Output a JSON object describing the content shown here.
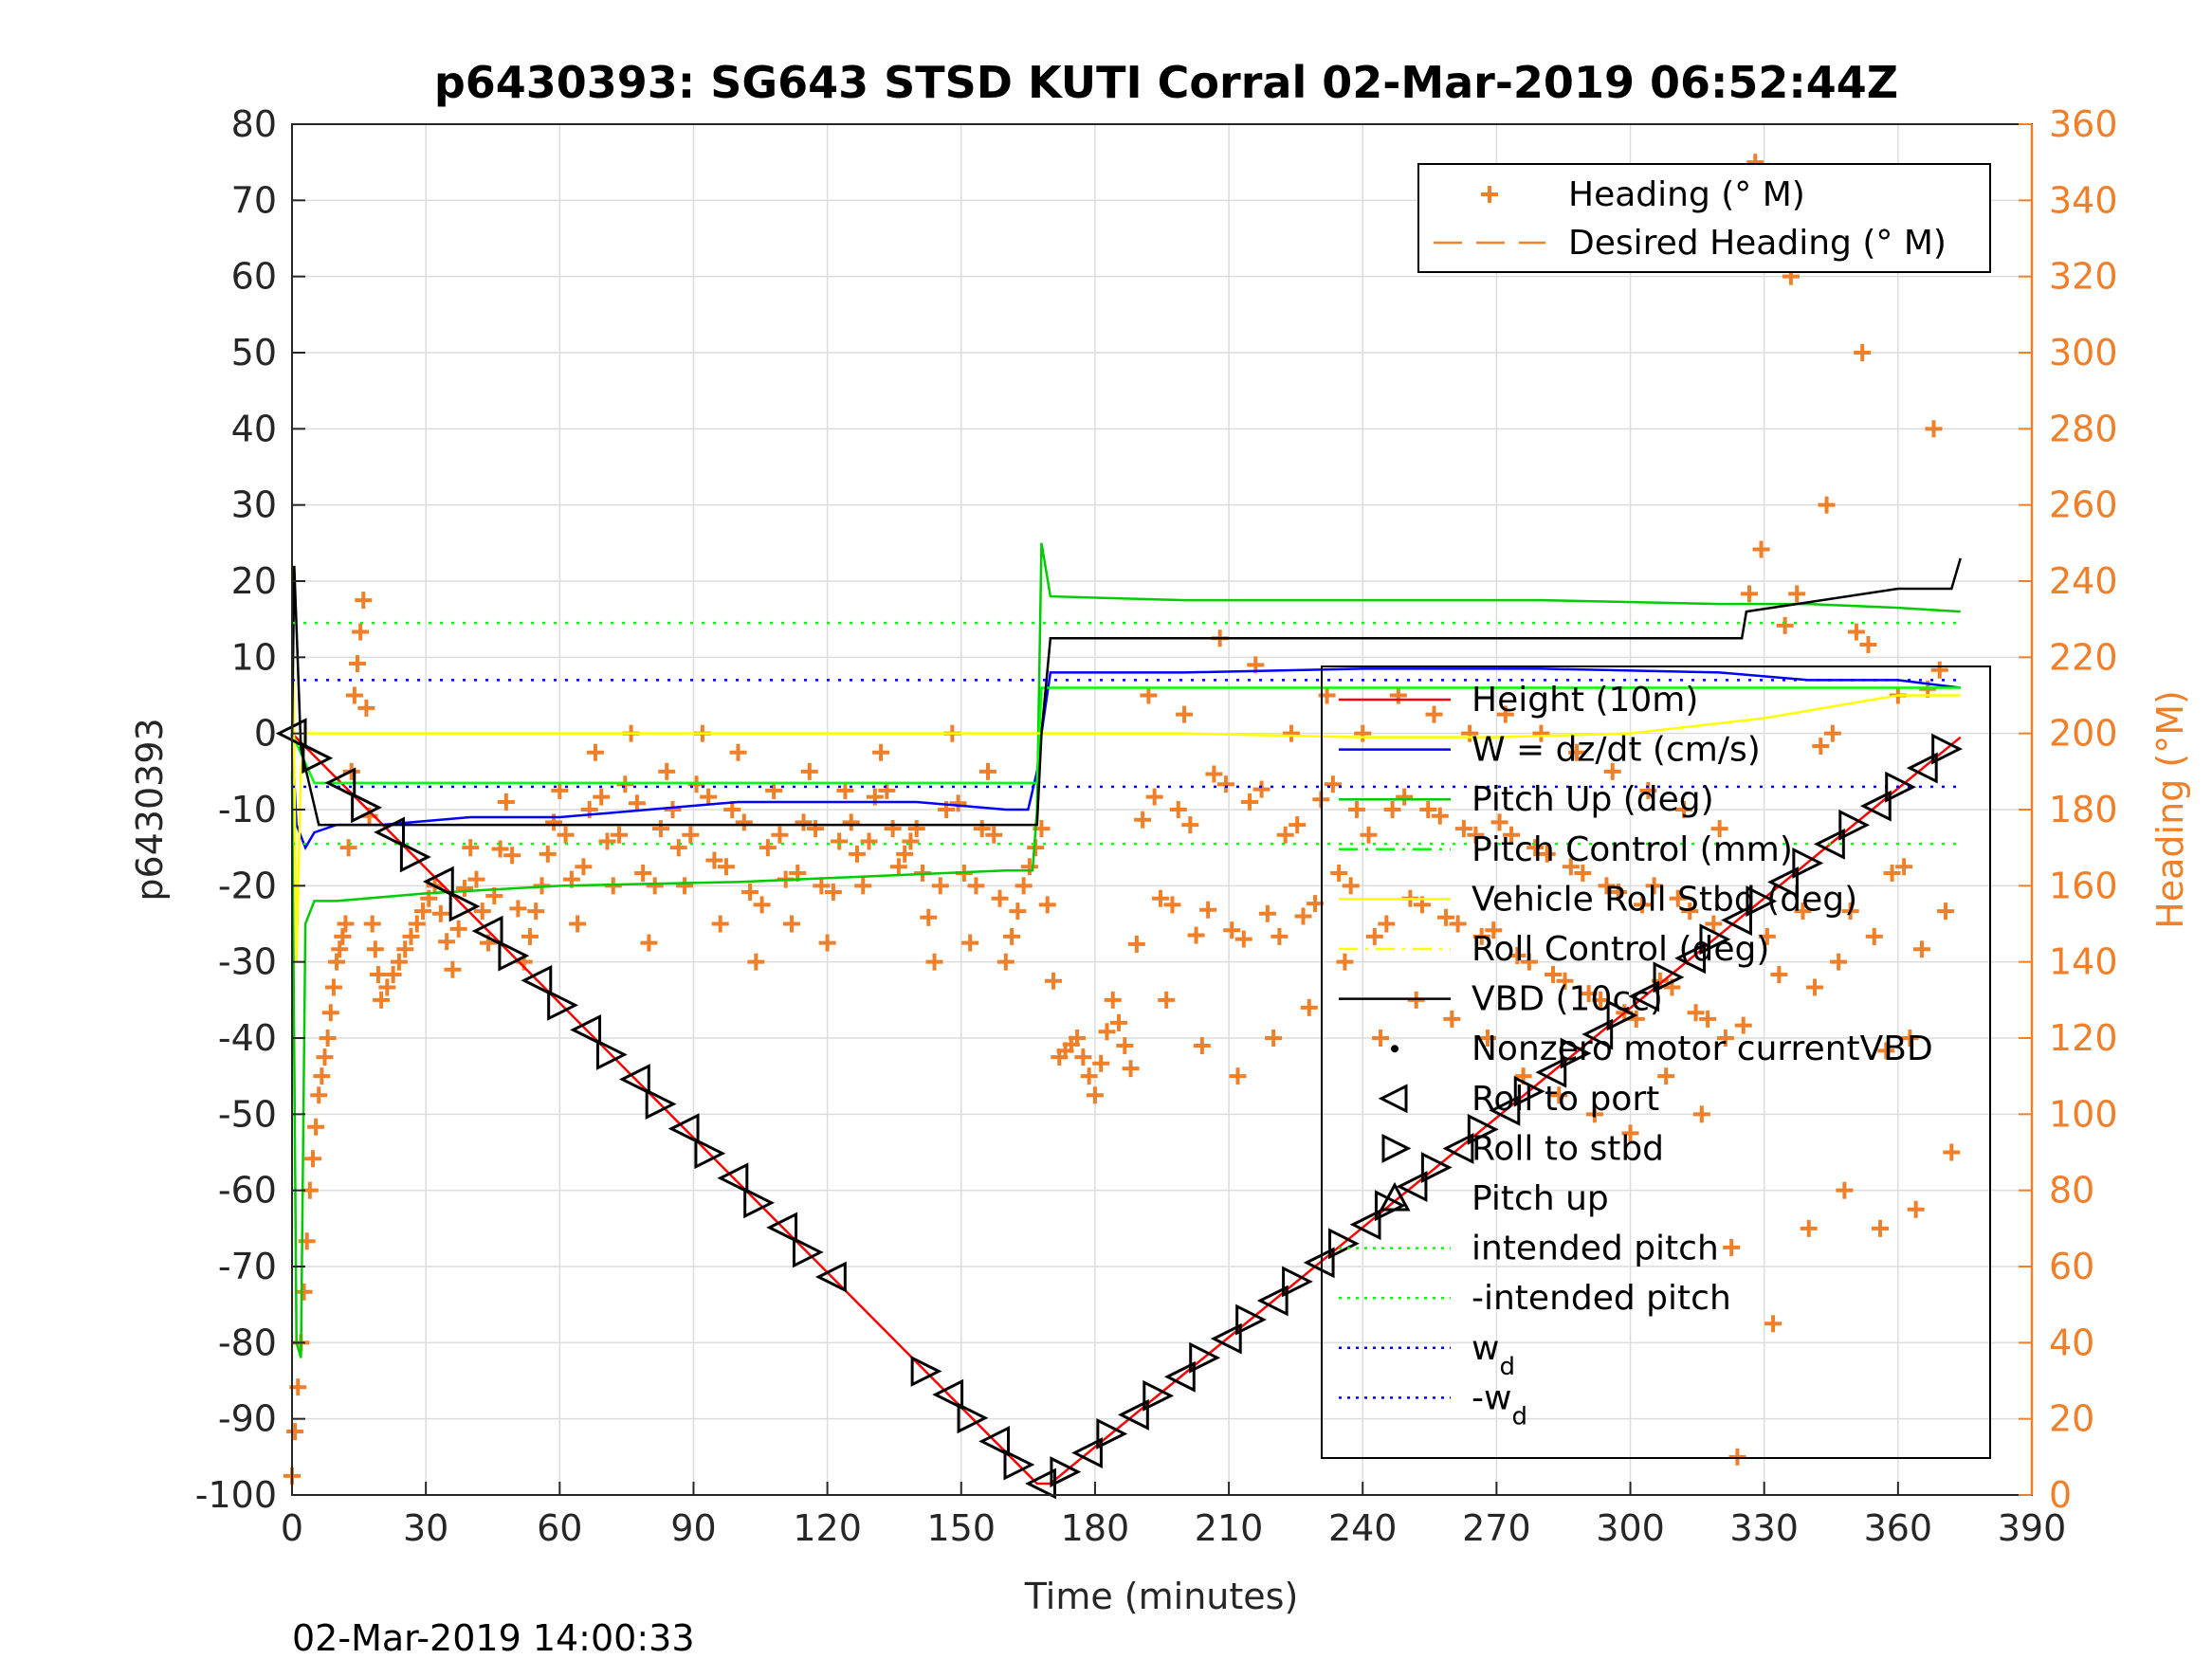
{
  "chart_data": {
    "type": "line",
    "title": "p6430393: SG643 STSD KUTI Corral 02-Mar-2019 06:52:44Z",
    "xlabel": "Time (minutes)",
    "ylabel": "p6430393",
    "ylabel_right": "Heading (°M)",
    "timestamp": "02-Mar-2019 14:00:33",
    "xlim": [
      0,
      390
    ],
    "ylim": [
      -100,
      80
    ],
    "ylim_right": [
      0,
      360
    ],
    "x_ticks": [
      "0",
      "30",
      "60",
      "90",
      "120",
      "150",
      "180",
      "210",
      "240",
      "270",
      "300",
      "330",
      "360",
      "390"
    ],
    "y_ticks": [
      "80",
      "70",
      "60",
      "50",
      "40",
      "30",
      "20",
      "10",
      "0",
      "-10",
      "-20",
      "-30",
      "-40",
      "-50",
      "-60",
      "-70",
      "-80",
      "-90",
      "-100"
    ],
    "y_ticks_right": [
      "360",
      "340",
      "320",
      "300",
      "280",
      "260",
      "240",
      "220",
      "200",
      "180",
      "160",
      "140",
      "120",
      "100",
      "80",
      "60",
      "40",
      "20",
      "0"
    ],
    "grid": true,
    "legends": [
      {
        "placement": "top-right",
        "entries": [
          {
            "label": "Heading (° M)",
            "color": "#f07f2a",
            "style": "plus"
          },
          {
            "label": "Desired Heading (° M)",
            "color": "#f07f2a",
            "style": "dashed"
          }
        ]
      },
      {
        "placement": "center-right",
        "entries": [
          {
            "label": "Height (10m)",
            "color": "#ff0000",
            "style": "line"
          },
          {
            "label": "W = dz/dt (cm/s)",
            "color": "#0000ff",
            "style": "line"
          },
          {
            "label": "Pitch Up (deg)",
            "color": "#00cc00",
            "style": "line"
          },
          {
            "label": "Pitch Control (mm)",
            "color": "#00ff00",
            "style": "dashdot"
          },
          {
            "label": "Vehicle Roll Stbd (deg)",
            "color": "#ffff00",
            "style": "line"
          },
          {
            "label": "Roll Control (deg)",
            "color": "#ffff00",
            "style": "dashdot"
          },
          {
            "label": "VBD (10cc)",
            "color": "#000000",
            "style": "line"
          },
          {
            "label": "Nonzero motor currentVBD",
            "color": "#000000",
            "style": "dot"
          },
          {
            "label": "Roll to port",
            "color": "#000000",
            "style": "triangle-left"
          },
          {
            "label": "Roll to stbd",
            "color": "#000000",
            "style": "triangle-right"
          },
          {
            "label": "Pitch up",
            "color": "#000000",
            "style": "triangle-up"
          },
          {
            "label": "intended pitch",
            "color": "#00ff00",
            "style": "dotted"
          },
          {
            "label": "-intended pitch",
            "color": "#00ff00",
            "style": "dotted"
          },
          {
            "label": "w",
            "sub": "d",
            "color": "#0000ff",
            "style": "dotted"
          },
          {
            "label": "-w",
            "sub": "d",
            "color": "#0000ff",
            "style": "dotted"
          }
        ]
      }
    ],
    "series": [
      {
        "name": "Height (10m)",
        "color": "#ff0000",
        "axis": "left",
        "x": [
          0,
          167,
          170,
          374
        ],
        "y": [
          0,
          -98.5,
          -98.5,
          -0.5
        ]
      },
      {
        "name": "W = dz/dt (cm/s)",
        "color": "#0000ff",
        "axis": "left",
        "x": [
          0,
          1,
          3,
          5,
          10,
          20,
          40,
          60,
          80,
          100,
          120,
          140,
          160,
          165,
          167,
          168,
          170,
          200,
          240,
          280,
          320,
          340,
          360,
          374
        ],
        "y": [
          0,
          -12,
          -15,
          -13,
          -12,
          -12,
          -11,
          -11,
          -10,
          -9,
          -9,
          -9,
          -10,
          -10,
          -5,
          0,
          8,
          8,
          8.5,
          8.5,
          8,
          7,
          7,
          6
        ]
      },
      {
        "name": "Pitch Up (deg)",
        "color": "#00cc00",
        "axis": "left",
        "x": [
          0,
          1,
          2,
          3,
          5,
          10,
          30,
          60,
          100,
          140,
          160,
          166,
          167,
          168,
          170,
          200,
          240,
          280,
          320,
          340,
          360,
          374
        ],
        "y": [
          -5,
          -80,
          -82,
          -25,
          -22,
          -22,
          -21,
          -20,
          -19.5,
          -18.5,
          -18,
          -18,
          -10,
          25,
          18,
          17.5,
          17.5,
          17.5,
          17,
          17,
          16.5,
          16
        ]
      },
      {
        "name": "Pitch Control (mm)",
        "color": "#00ff00",
        "axis": "left",
        "x": [
          0,
          5,
          167,
          168,
          374
        ],
        "y": [
          0,
          -6.5,
          -6.5,
          6,
          6
        ]
      },
      {
        "name": "Vehicle Roll Stbd (deg)",
        "color": "#ffff00",
        "axis": "left",
        "x": [
          0,
          1,
          2,
          3,
          10,
          30,
          60,
          90,
          120,
          150,
          166,
          168,
          200,
          240,
          270,
          300,
          330,
          360,
          374
        ],
        "y": [
          22,
          -30,
          -5,
          0,
          0,
          0,
          0,
          0,
          0,
          0,
          0,
          0,
          0,
          -0.5,
          -0.5,
          0,
          2,
          5,
          5
        ]
      },
      {
        "name": "VBD (10cc)",
        "color": "#000000",
        "axis": "left",
        "x": [
          0,
          0.5,
          2,
          6,
          166,
          167,
          168,
          170,
          325,
          326,
          360,
          372,
          374
        ],
        "y": [
          -0.5,
          22,
          -2,
          -12,
          -12,
          -12,
          0,
          12.5,
          12.5,
          16,
          19,
          19,
          23
        ]
      },
      {
        "name": "intended pitch",
        "color": "#00ff00",
        "axis": "left",
        "x": [
          0,
          374
        ],
        "y": [
          14.5,
          14.5
        ],
        "dash": "3,9"
      },
      {
        "name": "-intended pitch",
        "color": "#00ff00",
        "axis": "left",
        "x": [
          0,
          374
        ],
        "y": [
          -14.5,
          -14.5
        ],
        "dash": "3,9"
      },
      {
        "name": "wd",
        "color": "#0000ff",
        "axis": "left",
        "x": [
          0,
          374
        ],
        "y": [
          7,
          7
        ],
        "dash": "3,9"
      },
      {
        "name": "-wd",
        "color": "#0000ff",
        "axis": "left",
        "x": [
          0,
          374
        ],
        "y": [
          -7,
          -7
        ],
        "dash": "3,9"
      }
    ],
    "heading_series": {
      "name": "Heading (° M)",
      "color": "#f07f2a",
      "axis": "right",
      "x": [
        0,
        2,
        4,
        6,
        8,
        10,
        12,
        14,
        16,
        18,
        20,
        24,
        28,
        32,
        36,
        40,
        44,
        48,
        52,
        56,
        60,
        64,
        68,
        72,
        76,
        80,
        84,
        88,
        92,
        96,
        100,
        104,
        108,
        112,
        116,
        120,
        124,
        128,
        132,
        136,
        140,
        144,
        148,
        152,
        156,
        160,
        164,
        168,
        172,
        176,
        180,
        184,
        188,
        192,
        196,
        200,
        204,
        208,
        212,
        216,
        220,
        224,
        228,
        232,
        236,
        240,
        244,
        248,
        252,
        256,
        260,
        264,
        268,
        272,
        276,
        280,
        284,
        288,
        292,
        296,
        300,
        304,
        308,
        312,
        316,
        320,
        324,
        328,
        332,
        336,
        340,
        344,
        348,
        352,
        356,
        360,
        364,
        368,
        372
      ],
      "y": [
        5,
        40,
        80,
        105,
        120,
        140,
        150,
        210,
        235,
        150,
        130,
        140,
        150,
        160,
        138,
        170,
        145,
        182,
        140,
        160,
        185,
        150,
        195,
        160,
        200,
        145,
        190,
        160,
        200,
        150,
        195,
        140,
        185,
        150,
        190,
        145,
        185,
        160,
        195,
        165,
        175,
        140,
        200,
        145,
        190,
        140,
        160,
        175,
        115,
        120,
        105,
        130,
        112,
        210,
        130,
        205,
        118,
        225,
        110,
        218,
        120,
        200,
        128,
        210,
        140,
        200,
        120,
        210,
        130,
        205,
        125,
        200,
        120,
        205,
        110,
        200,
        105,
        195,
        100,
        190,
        95,
        185,
        110,
        180,
        100,
        175,
        10,
        350,
        45,
        320,
        70,
        260,
        80,
        300,
        70,
        210,
        75,
        280,
        90
      ]
    }
  }
}
